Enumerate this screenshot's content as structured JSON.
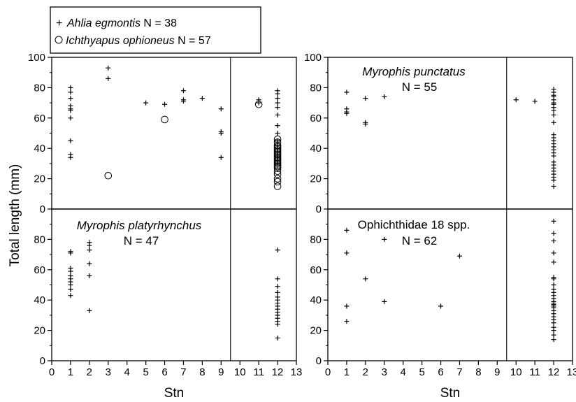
{
  "ylabel": "Total length (mm)",
  "xlabel": "Stn",
  "legend": [
    {
      "name": "Ahlia egmontis",
      "n": "N = 38",
      "marker": "plus"
    },
    {
      "name": "Ichthyapus ophioneus",
      "n": "N = 57",
      "marker": "circle"
    }
  ],
  "chart_data": [
    {
      "type": "scatter",
      "panel": "top-left",
      "title": "",
      "xlabel": "",
      "ylabel": "Total length (mm)",
      "xlim": [
        0,
        13
      ],
      "ylim": [
        0,
        100
      ],
      "yticks": [
        0,
        20,
        40,
        60,
        80,
        100
      ],
      "xticks": [],
      "divider_x": 9.5,
      "series": [
        {
          "name": "Ahlia egmontis",
          "marker": "plus",
          "points": [
            [
              1,
              80
            ],
            [
              1,
              77
            ],
            [
              1,
              73
            ],
            [
              1,
              68
            ],
            [
              1,
              66
            ],
            [
              1,
              65
            ],
            [
              1,
              60
            ],
            [
              1,
              45
            ],
            [
              1,
              36
            ],
            [
              1,
              34
            ],
            [
              3,
              93
            ],
            [
              3,
              86
            ],
            [
              5,
              70
            ],
            [
              6,
              69
            ],
            [
              7,
              78
            ],
            [
              7,
              72
            ],
            [
              7,
              71
            ],
            [
              8,
              73
            ],
            [
              9,
              66
            ],
            [
              9,
              51
            ],
            [
              9,
              50
            ],
            [
              9,
              34
            ],
            [
              11,
              72
            ],
            [
              11,
              70
            ],
            [
              12,
              78
            ],
            [
              12,
              76
            ],
            [
              12,
              73
            ],
            [
              12,
              70
            ],
            [
              12,
              67
            ],
            [
              12,
              62
            ],
            [
              12,
              55
            ],
            [
              12,
              50
            ],
            [
              12,
              45
            ],
            [
              12,
              42
            ],
            [
              12,
              38
            ],
            [
              12,
              35
            ],
            [
              12,
              33
            ],
            [
              12,
              30
            ]
          ]
        },
        {
          "name": "Ichthyapus ophioneus",
          "marker": "circle",
          "points": [
            [
              3,
              22
            ],
            [
              6,
              59
            ],
            [
              11,
              69
            ],
            [
              12,
              46
            ],
            [
              12,
              44
            ],
            [
              12,
              42
            ],
            [
              12,
              41
            ],
            [
              12,
              40
            ],
            [
              12,
              39
            ],
            [
              12,
              38
            ],
            [
              12,
              37
            ],
            [
              12,
              36
            ],
            [
              12,
              35
            ],
            [
              12,
              34
            ],
            [
              12,
              33
            ],
            [
              12,
              32
            ],
            [
              12,
              31
            ],
            [
              12,
              30
            ],
            [
              12,
              29
            ],
            [
              12,
              28
            ],
            [
              12,
              27
            ],
            [
              12,
              25
            ],
            [
              12,
              23
            ],
            [
              12,
              20
            ],
            [
              12,
              18
            ],
            [
              12,
              15
            ]
          ]
        }
      ]
    },
    {
      "type": "scatter",
      "panel": "top-right",
      "title": "Myrophis punctatus",
      "n": "N = 55",
      "xlim": [
        0,
        13
      ],
      "ylim": [
        0,
        100
      ],
      "yticks": [
        0,
        20,
        40,
        60,
        80,
        100
      ],
      "xticks": [],
      "divider_x": 9.5,
      "series": [
        {
          "name": "Myrophis punctatus",
          "marker": "plus",
          "points": [
            [
              1,
              77
            ],
            [
              1,
              66
            ],
            [
              1,
              64
            ],
            [
              1,
              63
            ],
            [
              2,
              73
            ],
            [
              2,
              57
            ],
            [
              2,
              56
            ],
            [
              3,
              74
            ],
            [
              10,
              72
            ],
            [
              11,
              71
            ],
            [
              12,
              79
            ],
            [
              12,
              77
            ],
            [
              12,
              75
            ],
            [
              12,
              74
            ],
            [
              12,
              72
            ],
            [
              12,
              70
            ],
            [
              12,
              69
            ],
            [
              12,
              67
            ],
            [
              12,
              65
            ],
            [
              12,
              62
            ],
            [
              12,
              57
            ],
            [
              12,
              49
            ],
            [
              12,
              47
            ],
            [
              12,
              45
            ],
            [
              12,
              43
            ],
            [
              12,
              41
            ],
            [
              12,
              39
            ],
            [
              12,
              37
            ],
            [
              12,
              35
            ],
            [
              12,
              31
            ],
            [
              12,
              29
            ],
            [
              12,
              27
            ],
            [
              12,
              25
            ],
            [
              12,
              23
            ],
            [
              12,
              21
            ],
            [
              12,
              19
            ],
            [
              12,
              15
            ]
          ]
        }
      ]
    },
    {
      "type": "scatter",
      "panel": "bottom-left",
      "title": "Myrophis platyrhynchus",
      "n": "N = 47",
      "xlim": [
        0,
        13
      ],
      "ylim": [
        0,
        100
      ],
      "yticks": [
        0,
        20,
        40,
        60,
        80
      ],
      "xticks": [
        0,
        1,
        2,
        3,
        4,
        5,
        6,
        7,
        8,
        9,
        10,
        11,
        12,
        13
      ],
      "divider_x": 9.5,
      "series": [
        {
          "name": "Myrophis platyrhynchus",
          "marker": "plus",
          "points": [
            [
              1,
              72
            ],
            [
              1,
              71
            ],
            [
              1,
              61
            ],
            [
              1,
              59
            ],
            [
              1,
              56
            ],
            [
              1,
              54
            ],
            [
              1,
              52
            ],
            [
              1,
              50
            ],
            [
              1,
              47
            ],
            [
              1,
              43
            ],
            [
              2,
              78
            ],
            [
              2,
              76
            ],
            [
              2,
              73
            ],
            [
              2,
              64
            ],
            [
              2,
              56
            ],
            [
              2,
              33
            ],
            [
              12,
              73
            ],
            [
              12,
              54
            ],
            [
              12,
              49
            ],
            [
              12,
              45
            ],
            [
              12,
              42
            ],
            [
              12,
              40
            ],
            [
              12,
              38
            ],
            [
              12,
              36
            ],
            [
              12,
              34
            ],
            [
              12,
              32
            ],
            [
              12,
              30
            ],
            [
              12,
              28
            ],
            [
              12,
              26
            ],
            [
              12,
              24
            ],
            [
              12,
              15
            ]
          ]
        }
      ]
    },
    {
      "type": "scatter",
      "panel": "bottom-right",
      "title": "Ophichthidae 18 spp.",
      "n": "N = 62",
      "xlim": [
        0,
        13
      ],
      "ylim": [
        0,
        100
      ],
      "yticks": [
        0,
        20,
        40,
        60,
        80
      ],
      "xticks": [
        0,
        1,
        2,
        3,
        4,
        5,
        6,
        7,
        8,
        9,
        10,
        11,
        12,
        13
      ],
      "divider_x": 9.5,
      "series": [
        {
          "name": "Ophichthidae 18 spp.",
          "marker": "plus",
          "points": [
            [
              1,
              86
            ],
            [
              1,
              71
            ],
            [
              1,
              36
            ],
            [
              1,
              26
            ],
            [
              2,
              54
            ],
            [
              3,
              80
            ],
            [
              3,
              39
            ],
            [
              6,
              36
            ],
            [
              7,
              69
            ],
            [
              12,
              92
            ],
            [
              12,
              84
            ],
            [
              12,
              79
            ],
            [
              12,
              71
            ],
            [
              12,
              65
            ],
            [
              12,
              55
            ],
            [
              12,
              54
            ],
            [
              12,
              50
            ],
            [
              12,
              47
            ],
            [
              12,
              45
            ],
            [
              12,
              43
            ],
            [
              12,
              41
            ],
            [
              12,
              39
            ],
            [
              12,
              38
            ],
            [
              12,
              37
            ],
            [
              12,
              36
            ],
            [
              12,
              35
            ],
            [
              12,
              33
            ],
            [
              12,
              31
            ],
            [
              12,
              29
            ],
            [
              12,
              27
            ],
            [
              12,
              25
            ],
            [
              12,
              22
            ],
            [
              12,
              20
            ],
            [
              12,
              17
            ],
            [
              12,
              14
            ]
          ]
        }
      ]
    }
  ]
}
